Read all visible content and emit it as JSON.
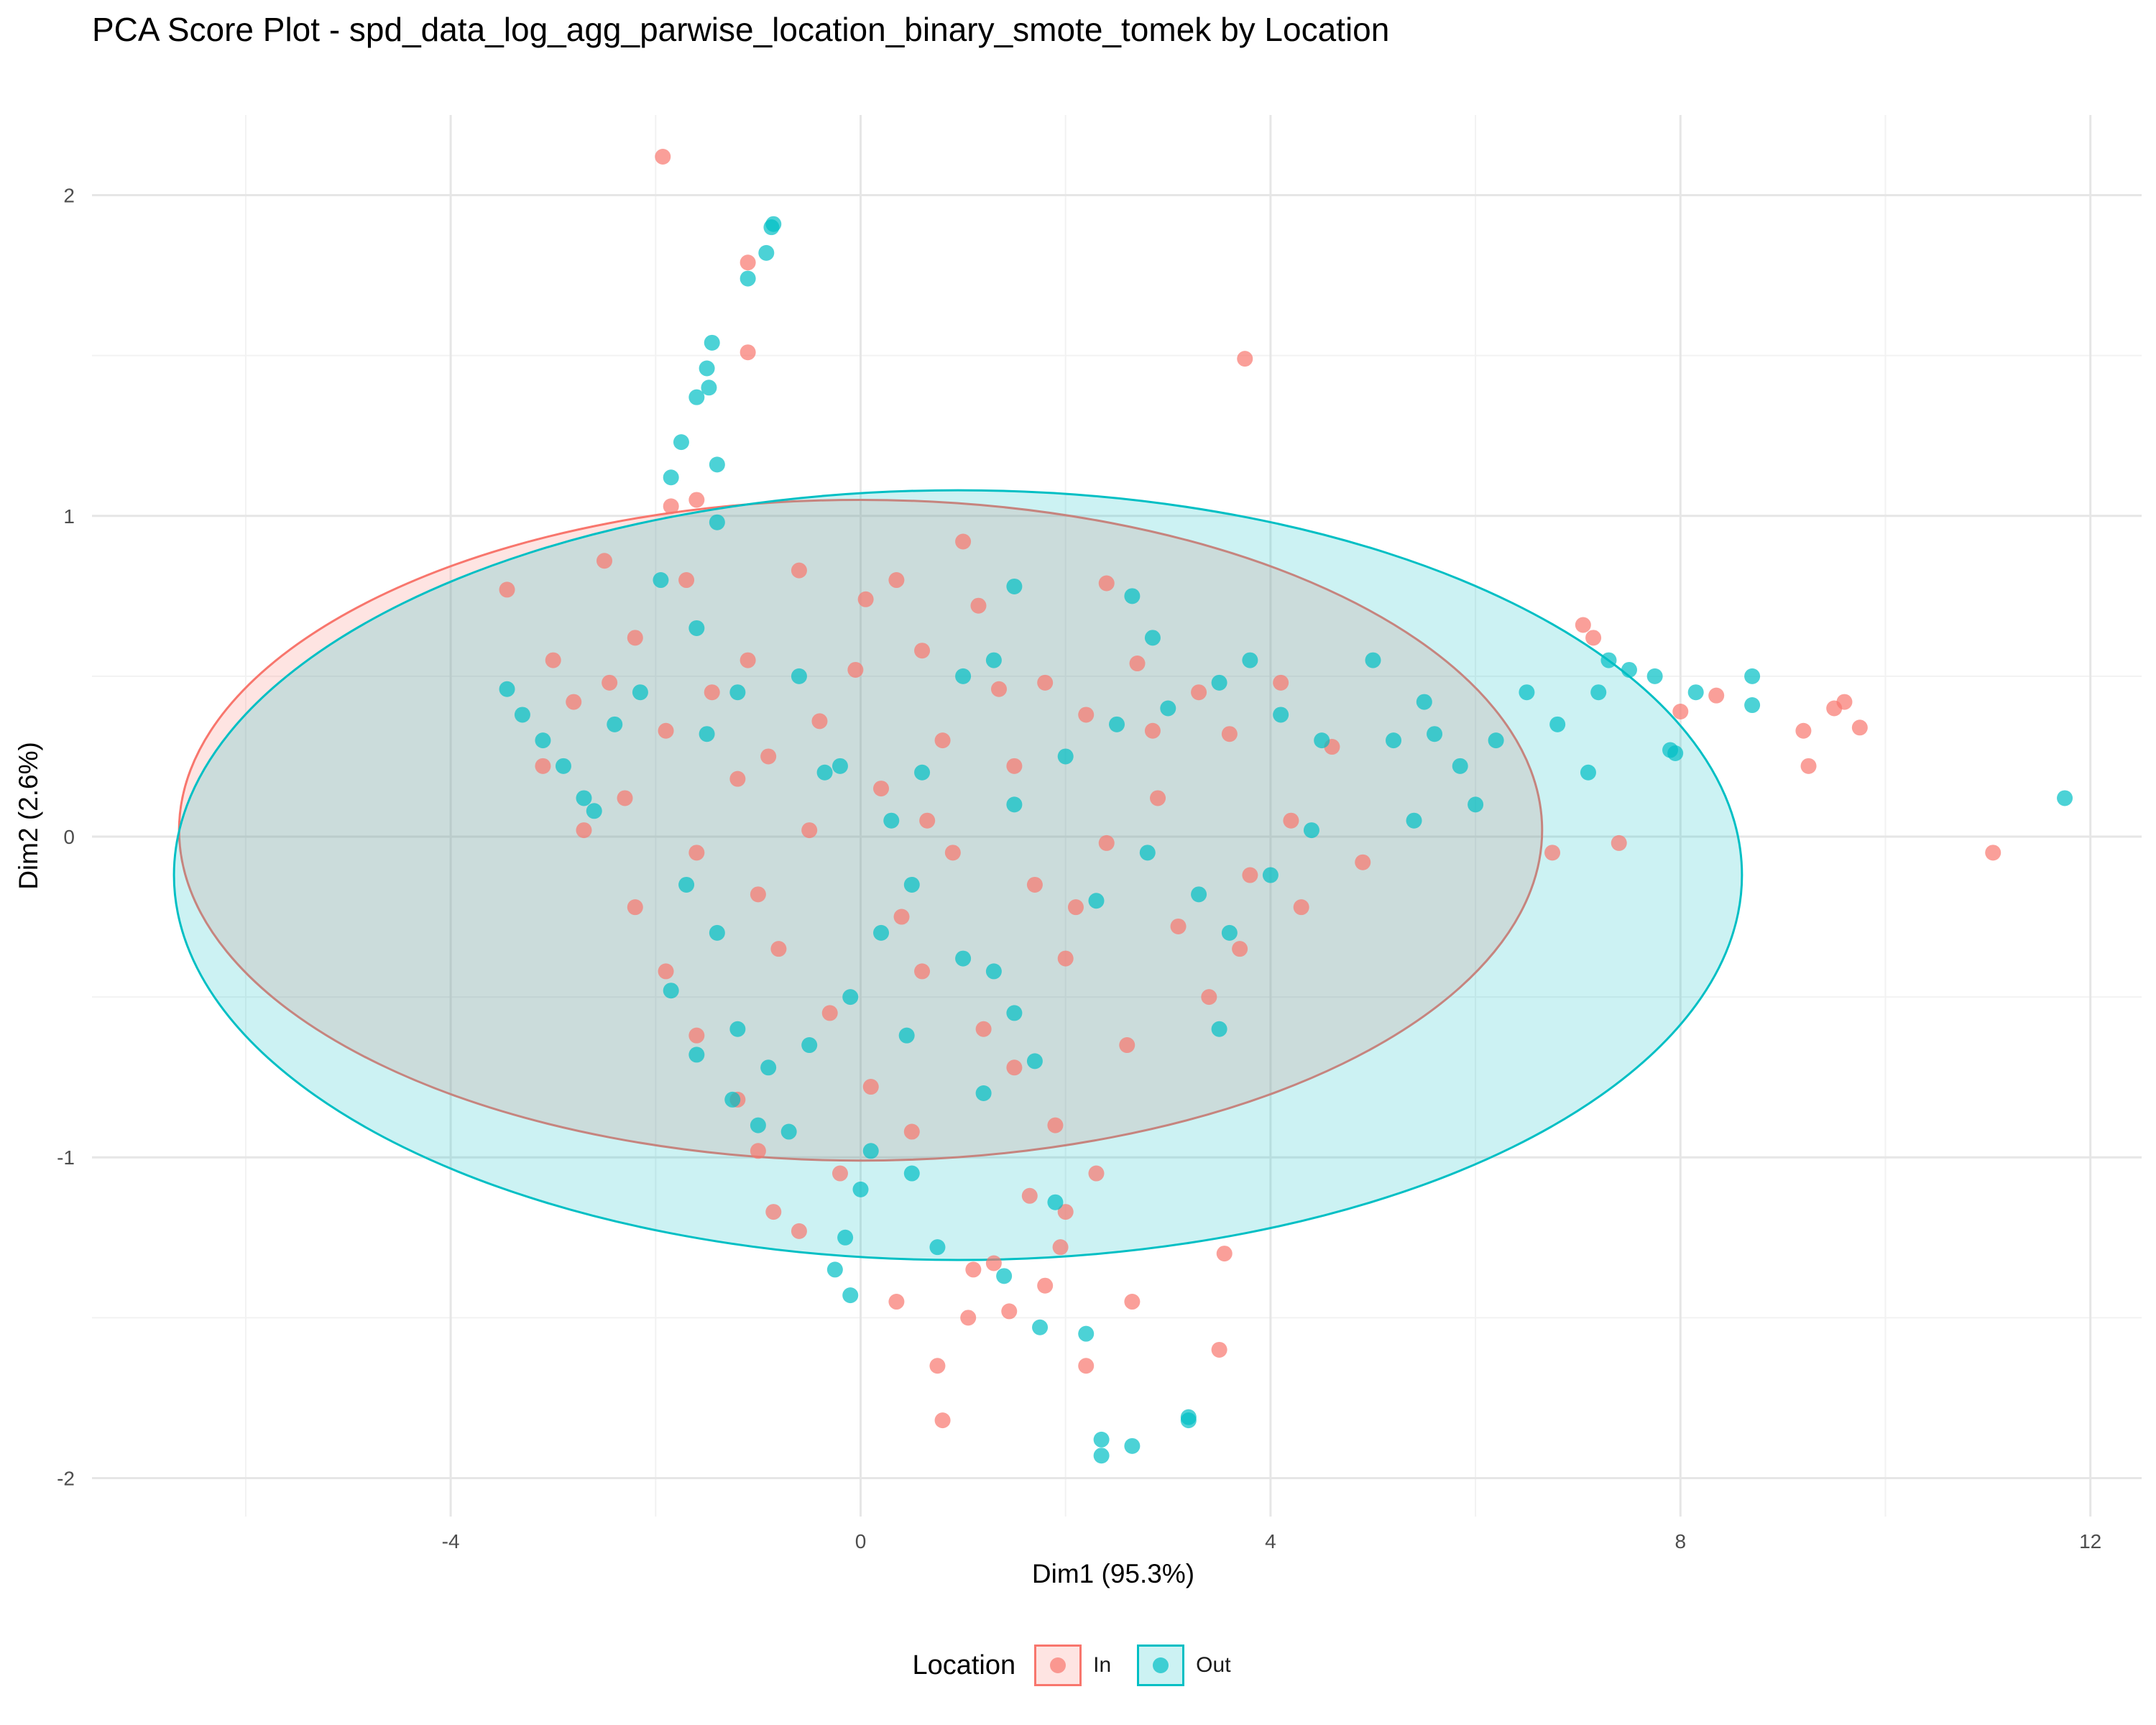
{
  "chart_data": {
    "type": "scatter",
    "title": "PCA Score Plot - spd_data_log_agg_parwise_location_binary_smote_tomek by Location",
    "xlabel": "Dim1 (95.3%)",
    "ylabel": "Dim2 (2.6%)",
    "xlim": [
      -7.5,
      12.5
    ],
    "ylim": [
      -2.12,
      2.25
    ],
    "xticks": [
      -4,
      0,
      4,
      8,
      12
    ],
    "xtick_labels": [
      "-4",
      "0",
      "4",
      "8",
      "12"
    ],
    "yticks": [
      -2,
      -1,
      0,
      1,
      2
    ],
    "ytick_labels": [
      "-2",
      "-1",
      "0",
      "1",
      "2"
    ],
    "grid": true,
    "legend": {
      "title": "Location",
      "position": "bottom",
      "entries": [
        "In",
        "Out"
      ]
    },
    "series": [
      {
        "name": "In",
        "color": "#F8766D",
        "ellipse": {
          "cx": 0.0,
          "cy": 0.02,
          "rx": 6.65,
          "ry": 1.03
        },
        "points": [
          [
            -1.93,
            2.12
          ],
          [
            -1.1,
            1.79
          ],
          [
            -1.1,
            1.51
          ],
          [
            3.75,
            1.49
          ],
          [
            -1.85,
            1.03
          ],
          [
            -1.6,
            1.05
          ],
          [
            7.05,
            0.66
          ],
          [
            7.15,
            0.62
          ],
          [
            8.35,
            0.44
          ],
          [
            8.0,
            0.39
          ],
          [
            9.2,
            0.33
          ],
          [
            9.5,
            0.4
          ],
          [
            9.6,
            0.42
          ],
          [
            9.75,
            0.34
          ],
          [
            9.25,
            0.22
          ],
          [
            11.05,
            -0.05
          ],
          [
            7.4,
            -0.02
          ],
          [
            6.75,
            -0.05
          ],
          [
            3.55,
            -1.3
          ],
          [
            3.5,
            -1.6
          ],
          [
            2.65,
            -1.45
          ],
          [
            2.2,
            -1.65
          ],
          [
            0.75,
            -1.65
          ],
          [
            0.8,
            -1.82
          ],
          [
            0.35,
            -1.45
          ],
          [
            1.1,
            -1.35
          ],
          [
            1.3,
            -1.33
          ],
          [
            1.45,
            -1.48
          ],
          [
            1.8,
            -1.4
          ],
          [
            1.05,
            -1.5
          ],
          [
            2.3,
            -1.05
          ],
          [
            1.65,
            -1.12
          ],
          [
            1.95,
            -1.28
          ],
          [
            2.0,
            -1.17
          ],
          [
            -0.6,
            -1.23
          ],
          [
            -0.85,
            -1.17
          ],
          [
            1.0,
            0.92
          ],
          [
            2.4,
            0.79
          ],
          [
            1.15,
            0.72
          ],
          [
            -3.45,
            0.77
          ],
          [
            -2.5,
            0.86
          ],
          [
            -1.7,
            0.8
          ],
          [
            -0.6,
            0.83
          ],
          [
            0.35,
            0.8
          ],
          [
            0.05,
            0.74
          ],
          [
            -2.2,
            0.62
          ],
          [
            -1.1,
            0.55
          ],
          [
            0.6,
            0.58
          ],
          [
            1.8,
            0.48
          ],
          [
            2.7,
            0.54
          ],
          [
            3.3,
            0.45
          ],
          [
            4.1,
            0.48
          ],
          [
            -2.8,
            0.42
          ],
          [
            -1.9,
            0.33
          ],
          [
            -0.4,
            0.36
          ],
          [
            0.8,
            0.3
          ],
          [
            2.2,
            0.38
          ],
          [
            3.6,
            0.32
          ],
          [
            4.6,
            0.28
          ],
          [
            -3.1,
            0.22
          ],
          [
            -2.3,
            0.12
          ],
          [
            -1.2,
            0.18
          ],
          [
            0.2,
            0.15
          ],
          [
            1.5,
            0.22
          ],
          [
            2.9,
            0.12
          ],
          [
            4.2,
            0.05
          ],
          [
            -2.7,
            0.02
          ],
          [
            -1.6,
            -0.05
          ],
          [
            -0.5,
            0.02
          ],
          [
            0.9,
            -0.05
          ],
          [
            2.4,
            -0.02
          ],
          [
            3.8,
            -0.12
          ],
          [
            4.9,
            -0.08
          ],
          [
            -2.2,
            -0.22
          ],
          [
            -1.0,
            -0.18
          ],
          [
            0.4,
            -0.25
          ],
          [
            1.7,
            -0.15
          ],
          [
            3.1,
            -0.28
          ],
          [
            4.3,
            -0.22
          ],
          [
            -1.9,
            -0.42
          ],
          [
            -0.8,
            -0.35
          ],
          [
            0.6,
            -0.42
          ],
          [
            2.0,
            -0.38
          ],
          [
            3.4,
            -0.5
          ],
          [
            -1.6,
            -0.62
          ],
          [
            -0.3,
            -0.55
          ],
          [
            1.2,
            -0.6
          ],
          [
            2.6,
            -0.65
          ],
          [
            -1.2,
            -0.82
          ],
          [
            0.1,
            -0.78
          ],
          [
            1.5,
            -0.72
          ],
          [
            -1.0,
            -0.98
          ],
          [
            0.5,
            -0.92
          ],
          [
            1.9,
            -0.9
          ],
          [
            -0.2,
            -1.05
          ],
          [
            -2.45,
            0.48
          ],
          [
            -1.45,
            0.45
          ],
          [
            -0.05,
            0.52
          ],
          [
            1.35,
            0.46
          ],
          [
            2.85,
            0.33
          ],
          [
            -3.0,
            0.55
          ],
          [
            -0.9,
            0.25
          ],
          [
            0.65,
            0.05
          ],
          [
            2.1,
            -0.22
          ],
          [
            3.7,
            -0.35
          ]
        ]
      },
      {
        "name": "Out",
        "color": "#00BFC4",
        "ellipse": {
          "cx": 0.95,
          "cy": -0.12,
          "rx": 7.65,
          "ry": 1.2
        },
        "points": [
          [
            -0.85,
            1.91
          ],
          [
            -0.87,
            1.9
          ],
          [
            -0.92,
            1.82
          ],
          [
            -1.1,
            1.74
          ],
          [
            -1.45,
            1.54
          ],
          [
            -1.5,
            1.46
          ],
          [
            -1.48,
            1.4
          ],
          [
            -1.6,
            1.37
          ],
          [
            -1.75,
            1.23
          ],
          [
            -1.85,
            1.12
          ],
          [
            -1.4,
            1.16
          ],
          [
            -1.4,
            0.98
          ],
          [
            -1.95,
            0.8
          ],
          [
            -1.6,
            0.65
          ],
          [
            2.65,
            0.75
          ],
          [
            1.5,
            0.78
          ],
          [
            11.75,
            0.12
          ],
          [
            8.7,
            0.5
          ],
          [
            8.7,
            0.41
          ],
          [
            8.15,
            0.45
          ],
          [
            7.75,
            0.5
          ],
          [
            7.5,
            0.52
          ],
          [
            7.3,
            0.55
          ],
          [
            6.5,
            0.45
          ],
          [
            5.5,
            0.42
          ],
          [
            5.0,
            0.55
          ],
          [
            7.9,
            0.27
          ],
          [
            7.95,
            0.26
          ],
          [
            7.1,
            0.2
          ],
          [
            5.85,
            0.22
          ],
          [
            6.0,
            0.1
          ],
          [
            5.4,
            0.05
          ],
          [
            2.35,
            -1.88
          ],
          [
            2.35,
            -1.93
          ],
          [
            2.65,
            -1.9
          ],
          [
            3.2,
            -1.82
          ],
          [
            3.2,
            -1.81
          ],
          [
            1.75,
            -1.53
          ],
          [
            2.2,
            -1.55
          ],
          [
            1.4,
            -1.37
          ],
          [
            1.9,
            -1.14
          ],
          [
            0.75,
            -1.28
          ],
          [
            -0.1,
            -1.43
          ],
          [
            -0.25,
            -1.35
          ],
          [
            -0.15,
            -1.25
          ],
          [
            0.0,
            -1.1
          ],
          [
            0.5,
            -1.05
          ],
          [
            -1.0,
            -0.9
          ],
          [
            -1.25,
            -0.82
          ],
          [
            -1.6,
            -0.68
          ],
          [
            -1.85,
            -0.48
          ],
          [
            -3.45,
            0.46
          ],
          [
            -3.3,
            0.38
          ],
          [
            -3.1,
            0.3
          ],
          [
            -2.9,
            0.22
          ],
          [
            -2.7,
            0.12
          ],
          [
            -2.6,
            0.08
          ],
          [
            -2.4,
            0.35
          ],
          [
            -2.15,
            0.45
          ],
          [
            -1.5,
            0.32
          ],
          [
            -1.2,
            0.45
          ],
          [
            -0.6,
            0.5
          ],
          [
            -0.2,
            0.22
          ],
          [
            0.3,
            0.05
          ],
          [
            0.6,
            0.2
          ],
          [
            1.0,
            0.5
          ],
          [
            1.3,
            0.55
          ],
          [
            1.5,
            0.1
          ],
          [
            2.0,
            0.25
          ],
          [
            2.5,
            0.35
          ],
          [
            3.0,
            0.4
          ],
          [
            3.5,
            0.48
          ],
          [
            3.8,
            0.55
          ],
          [
            4.1,
            0.38
          ],
          [
            4.5,
            0.3
          ],
          [
            5.2,
            0.3
          ],
          [
            5.6,
            0.32
          ],
          [
            6.2,
            0.3
          ],
          [
            6.8,
            0.35
          ],
          [
            7.2,
            0.45
          ],
          [
            1.0,
            -0.38
          ],
          [
            1.3,
            -0.42
          ],
          [
            1.5,
            -0.55
          ],
          [
            1.7,
            -0.7
          ],
          [
            0.5,
            -0.15
          ],
          [
            0.2,
            -0.3
          ],
          [
            -0.1,
            -0.5
          ],
          [
            -0.5,
            -0.65
          ],
          [
            -0.9,
            -0.72
          ],
          [
            -1.2,
            -0.6
          ],
          [
            -1.4,
            -0.3
          ],
          [
            -1.7,
            -0.15
          ],
          [
            -0.7,
            -0.92
          ],
          [
            0.1,
            -0.98
          ],
          [
            2.3,
            -0.2
          ],
          [
            2.8,
            -0.05
          ],
          [
            3.3,
            -0.18
          ],
          [
            3.6,
            -0.3
          ],
          [
            4.0,
            -0.12
          ],
          [
            4.4,
            0.02
          ],
          [
            3.5,
            -0.6
          ],
          [
            1.2,
            -0.8
          ],
          [
            -0.35,
            0.2
          ],
          [
            0.45,
            -0.62
          ],
          [
            2.85,
            0.62
          ]
        ]
      }
    ]
  }
}
